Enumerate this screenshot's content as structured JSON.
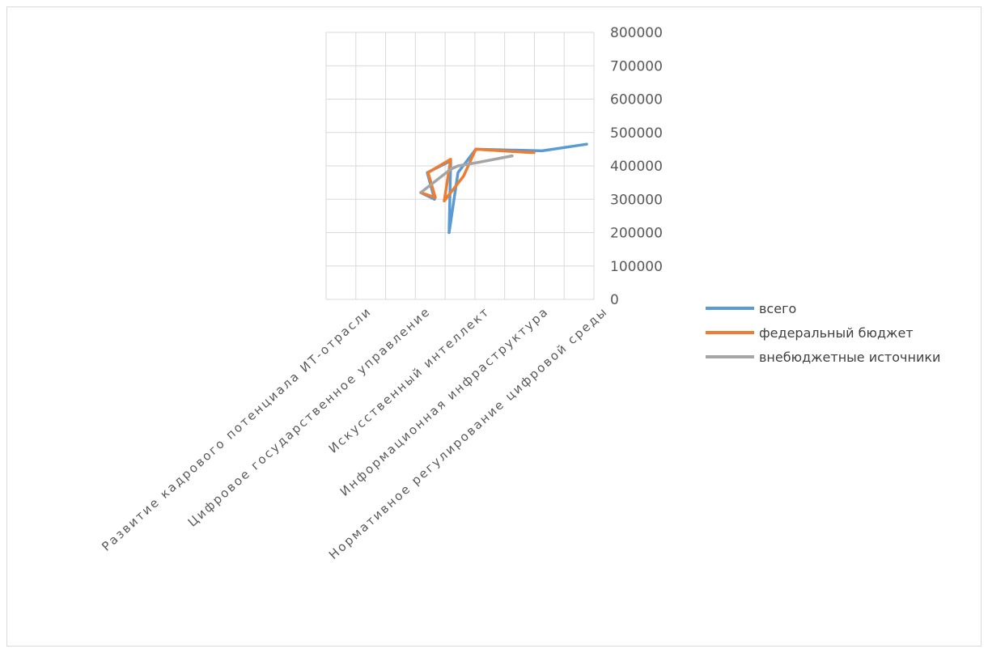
{
  "chart_data": {
    "type": "line",
    "categories": [
      "Развитие кадрового потенциала ИТ-отрасли",
      "Цифровое государственное управление",
      "Искусственный интеллект",
      "Информационная инфраструктура",
      "Нормативное регулирование цифровой среды"
    ],
    "ylim": [
      0,
      800000
    ],
    "yticks": [
      "0",
      "100000",
      "200000",
      "300000",
      "400000",
      "500000",
      "600000",
      "700000",
      "800000"
    ],
    "grid": true,
    "legend_position": "right",
    "series": [
      {
        "name": "всего",
        "color": "#5b9bd5",
        "points": [
          [
            520,
            320000
          ],
          [
            537,
            300000
          ],
          [
            528,
            380000
          ],
          [
            557,
            415000
          ],
          [
            555,
            200000
          ],
          [
            566,
            380000
          ],
          [
            588,
            450000
          ],
          [
            670,
            445000
          ],
          [
            725,
            465000
          ]
        ]
      },
      {
        "name": "федеральный бюджет",
        "color": "#ed7d31",
        "points": [
          [
            520,
            320000
          ],
          [
            538,
            305000
          ],
          [
            529,
            380000
          ],
          [
            557,
            420000
          ],
          [
            549,
            295000
          ],
          [
            573,
            370000
          ],
          [
            588,
            450000
          ],
          [
            655,
            440000
          ],
          [
            660,
            440000
          ]
        ]
      },
      {
        "name": "внебюджетные источники",
        "color": "#a5a5a5",
        "points": [
          [
            520,
            320000
          ],
          [
            557,
            390000
          ],
          [
            566,
            400000
          ],
          [
            590,
            410000
          ],
          [
            633,
            430000
          ]
        ]
      }
    ]
  }
}
